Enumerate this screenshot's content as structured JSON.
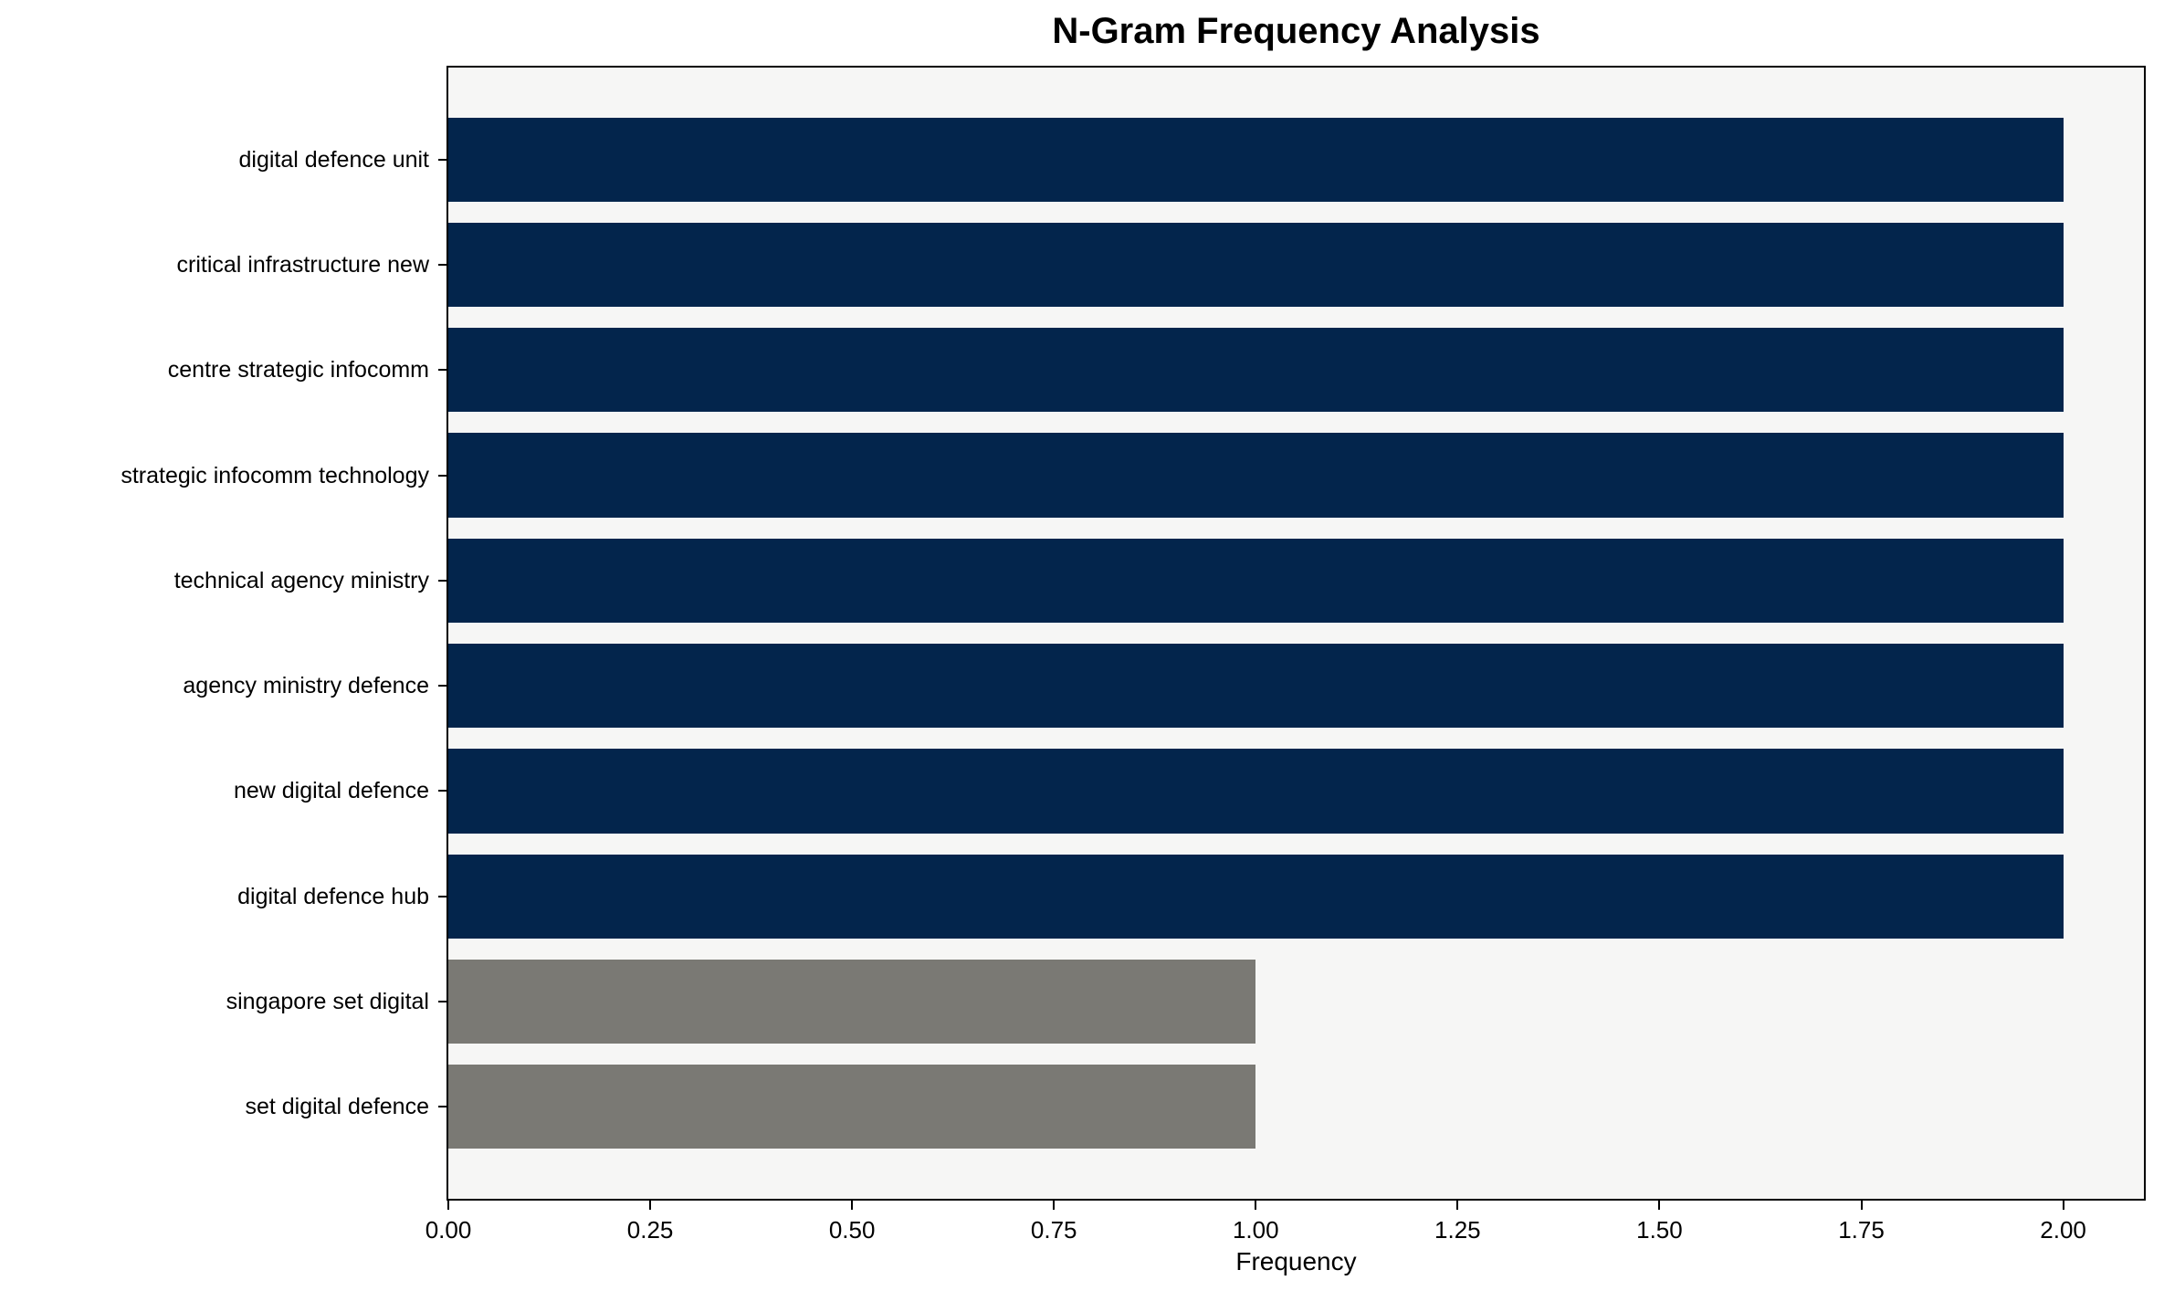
{
  "chart_data": {
    "type": "bar",
    "orientation": "horizontal",
    "title": "N-Gram Frequency Analysis",
    "xlabel": "Frequency",
    "ylabel": "",
    "categories": [
      "digital defence unit",
      "critical infrastructure new",
      "centre strategic infocomm",
      "strategic infocomm technology",
      "technical agency ministry",
      "agency ministry defence",
      "new digital defence",
      "digital defence hub",
      "singapore set digital",
      "set digital defence"
    ],
    "values": [
      2,
      2,
      2,
      2,
      2,
      2,
      2,
      2,
      1,
      1
    ],
    "bar_colors": [
      "#03254c",
      "#03254c",
      "#03254c",
      "#03254c",
      "#03254c",
      "#03254c",
      "#03254c",
      "#03254c",
      "#7a7974",
      "#7a7974"
    ],
    "xlim": [
      0,
      2.1
    ],
    "xtick_labels": [
      "0.00",
      "0.25",
      "0.50",
      "0.75",
      "1.00",
      "1.25",
      "1.50",
      "1.75",
      "2.00"
    ],
    "grid": false,
    "legend": null,
    "colors": {
      "plot_background": "#f6f6f5",
      "figure_background": "#ffffff",
      "spine": "#000000",
      "navy_bar": "#03254c",
      "gray_bar": "#7a7974"
    }
  }
}
